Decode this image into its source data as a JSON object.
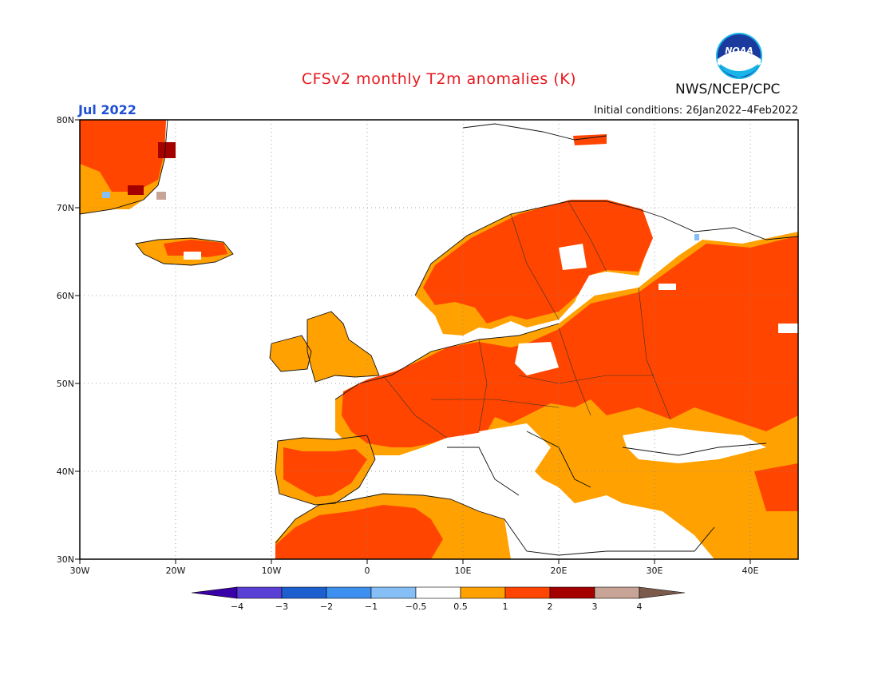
{
  "header": {
    "title": "CFSv2 monthly T2m anomalies (K)",
    "agency": "NWS/NCEP/CPC",
    "logo_text": "NOAA",
    "month": "Jul 2022",
    "initial_conditions": "Initial conditions: 26Jan2022–4Feb2022"
  },
  "map": {
    "lat_labels": [
      "80N",
      "70N",
      "60N",
      "50N",
      "40N",
      "30N"
    ],
    "lon_labels": [
      "30W",
      "20W",
      "10W",
      "0",
      "10E",
      "20E",
      "30E",
      "40E"
    ],
    "lon_range": [
      -30,
      45
    ],
    "lat_range": [
      30,
      80
    ],
    "grid": "dotted"
  },
  "colorbar": {
    "tick_labels": [
      "−4",
      "−3",
      "−2",
      "−1",
      "−0.5",
      "0.5",
      "1",
      "2",
      "3",
      "4"
    ],
    "colors": [
      "#3a00a8",
      "#5a3fd6",
      "#1e5fd0",
      "#3d8ff0",
      "#86bff5",
      "#ffffff",
      "#ffa100",
      "#ff4500",
      "#a40000",
      "#c8a496",
      "#7b5a4c"
    ]
  },
  "colors": {
    "anomaly_0_5_to_1": "#ffa100",
    "anomaly_1_to_2": "#ff4500",
    "anomaly_2_to_3": "#a40000",
    "title": "#e8191e",
    "month": "#1f4fd6"
  }
}
